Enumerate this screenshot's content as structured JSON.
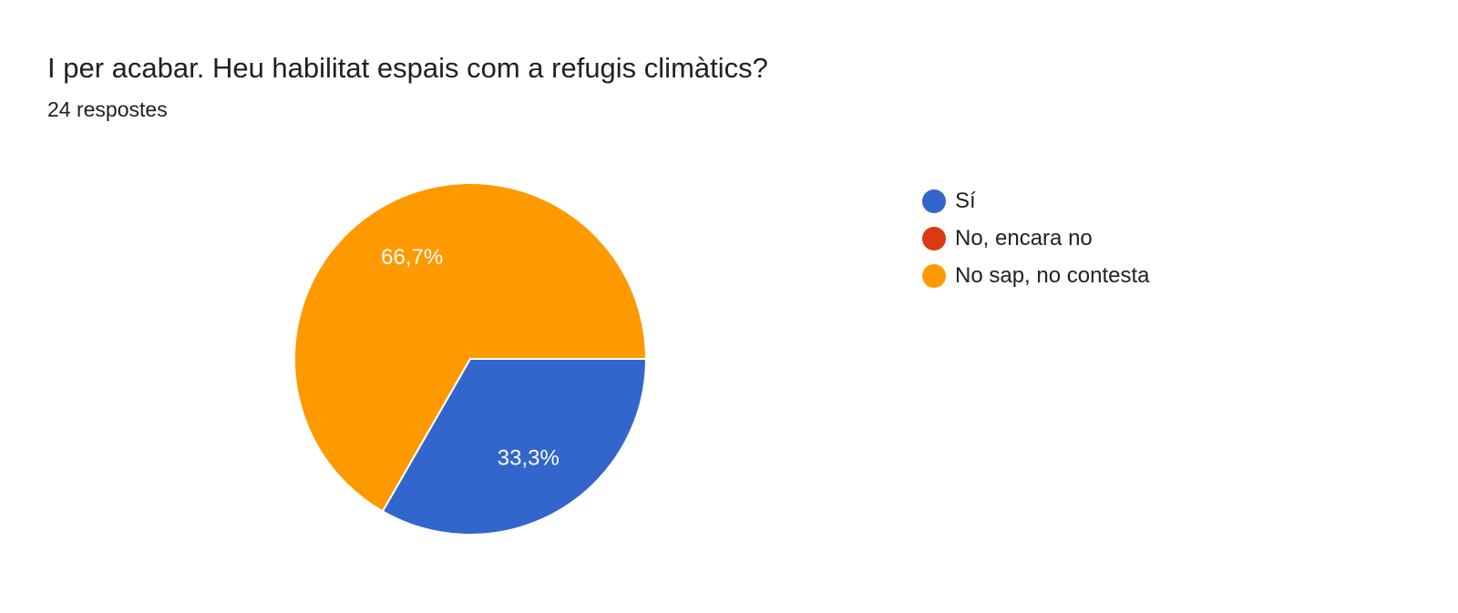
{
  "header": {
    "title": "I per acabar. Heu habilitat espais com a refugis climàtics?",
    "responses": "24 respostes"
  },
  "chart_data": {
    "type": "pie",
    "title": "I per acabar. Heu habilitat espais com a refugis climàtics?",
    "categories": [
      "Sí",
      "No, encara no",
      "No sap, no contesta"
    ],
    "values": [
      33.3,
      0,
      66.7
    ],
    "value_labels": [
      "33,3%",
      "",
      "66,7%"
    ],
    "colors": [
      "#3366cc",
      "#dc3912",
      "#ff9900"
    ],
    "legend_position": "right",
    "start_direction": "east, clockwise"
  },
  "legend": {
    "items": [
      {
        "label": "Sí",
        "color": "#3366cc"
      },
      {
        "label": "No, encara no",
        "color": "#dc3912"
      },
      {
        "label": "No sap, no contesta",
        "color": "#ff9900"
      }
    ]
  }
}
